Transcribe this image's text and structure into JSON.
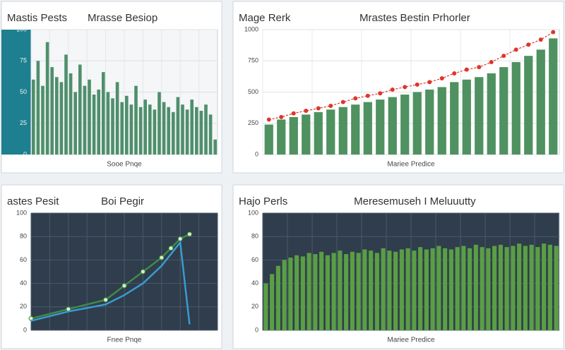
{
  "chart_data": [
    {
      "type": "bar",
      "heading": "Mastis Pests",
      "title": "Mrasse Besiop",
      "x_label": "Sooe Pnqe",
      "color": "#4f8f6c",
      "background": "#f4f6f7",
      "axis_background": "#1d7f8f",
      "grid": true,
      "ylim": [
        0,
        100
      ],
      "yticks": [
        0,
        25,
        50,
        75,
        100
      ],
      "values": [
        60,
        75,
        55,
        90,
        70,
        62,
        58,
        80,
        65,
        50,
        72,
        55,
        60,
        48,
        52,
        66,
        50,
        45,
        58,
        42,
        47,
        40,
        55,
        38,
        44,
        40,
        36,
        50,
        42,
        38,
        34,
        46,
        40,
        36,
        44,
        38,
        35,
        40,
        32,
        12
      ]
    },
    {
      "type": "combo",
      "heading": "Mage Rerk",
      "title": "Mrastes Bestin Prhorler",
      "x_label": "Mariee Predice",
      "color": "#4f9160",
      "line_color": "#e0352b",
      "background": "#ffffff",
      "grid": true,
      "ylim": [
        0,
        1000
      ],
      "yticks": [
        0,
        250,
        500,
        750,
        1000
      ],
      "values": [
        240,
        280,
        300,
        320,
        340,
        360,
        380,
        400,
        420,
        440,
        460,
        480,
        500,
        520,
        540,
        580,
        600,
        620,
        650,
        700,
        740,
        790,
        840,
        930
      ],
      "line_values": [
        280,
        300,
        330,
        350,
        370,
        390,
        420,
        450,
        470,
        490,
        520,
        540,
        560,
        580,
        610,
        650,
        680,
        700,
        740,
        790,
        840,
        880,
        920,
        980
      ]
    },
    {
      "type": "line",
      "heading": "astes Pesit",
      "title": "Boi Pegir",
      "x_label": "Fnee Pnqe",
      "background": "#2f3d4c",
      "grid": true,
      "xlim": [
        0,
        10
      ],
      "ylim": [
        0,
        100
      ],
      "yticks": [
        0,
        20,
        40,
        60,
        80,
        100
      ],
      "x": [
        0,
        2,
        4,
        5,
        6,
        7,
        7.5,
        8,
        8.5
      ],
      "series": [
        {
          "color": "#3f8a4a",
          "marker": true,
          "values": [
            10,
            18,
            26,
            38,
            50,
            62,
            70,
            78,
            82
          ]
        },
        {
          "color": "#3a9bd0",
          "marker": false,
          "values": [
            8,
            16,
            22,
            30,
            40,
            55,
            65,
            75,
            5
          ]
        }
      ]
    },
    {
      "type": "bar",
      "heading": "Hajo Perls",
      "title": "Meresemuseh I Meluuutty",
      "x_label": "Mariee Predice",
      "color": "#5a9e45",
      "background": "#2f3d4c",
      "grid": true,
      "ylim": [
        0,
        100
      ],
      "yticks": [
        0,
        20,
        40,
        60,
        80,
        100
      ],
      "values": [
        40,
        48,
        55,
        60,
        62,
        64,
        63,
        66,
        65,
        67,
        64,
        66,
        68,
        65,
        67,
        66,
        69,
        68,
        66,
        70,
        68,
        67,
        69,
        70,
        68,
        71,
        69,
        70,
        72,
        70,
        69,
        71,
        72,
        70,
        73,
        71,
        70,
        72,
        73,
        71,
        72,
        74,
        72,
        73,
        71,
        74,
        73,
        72
      ]
    }
  ]
}
